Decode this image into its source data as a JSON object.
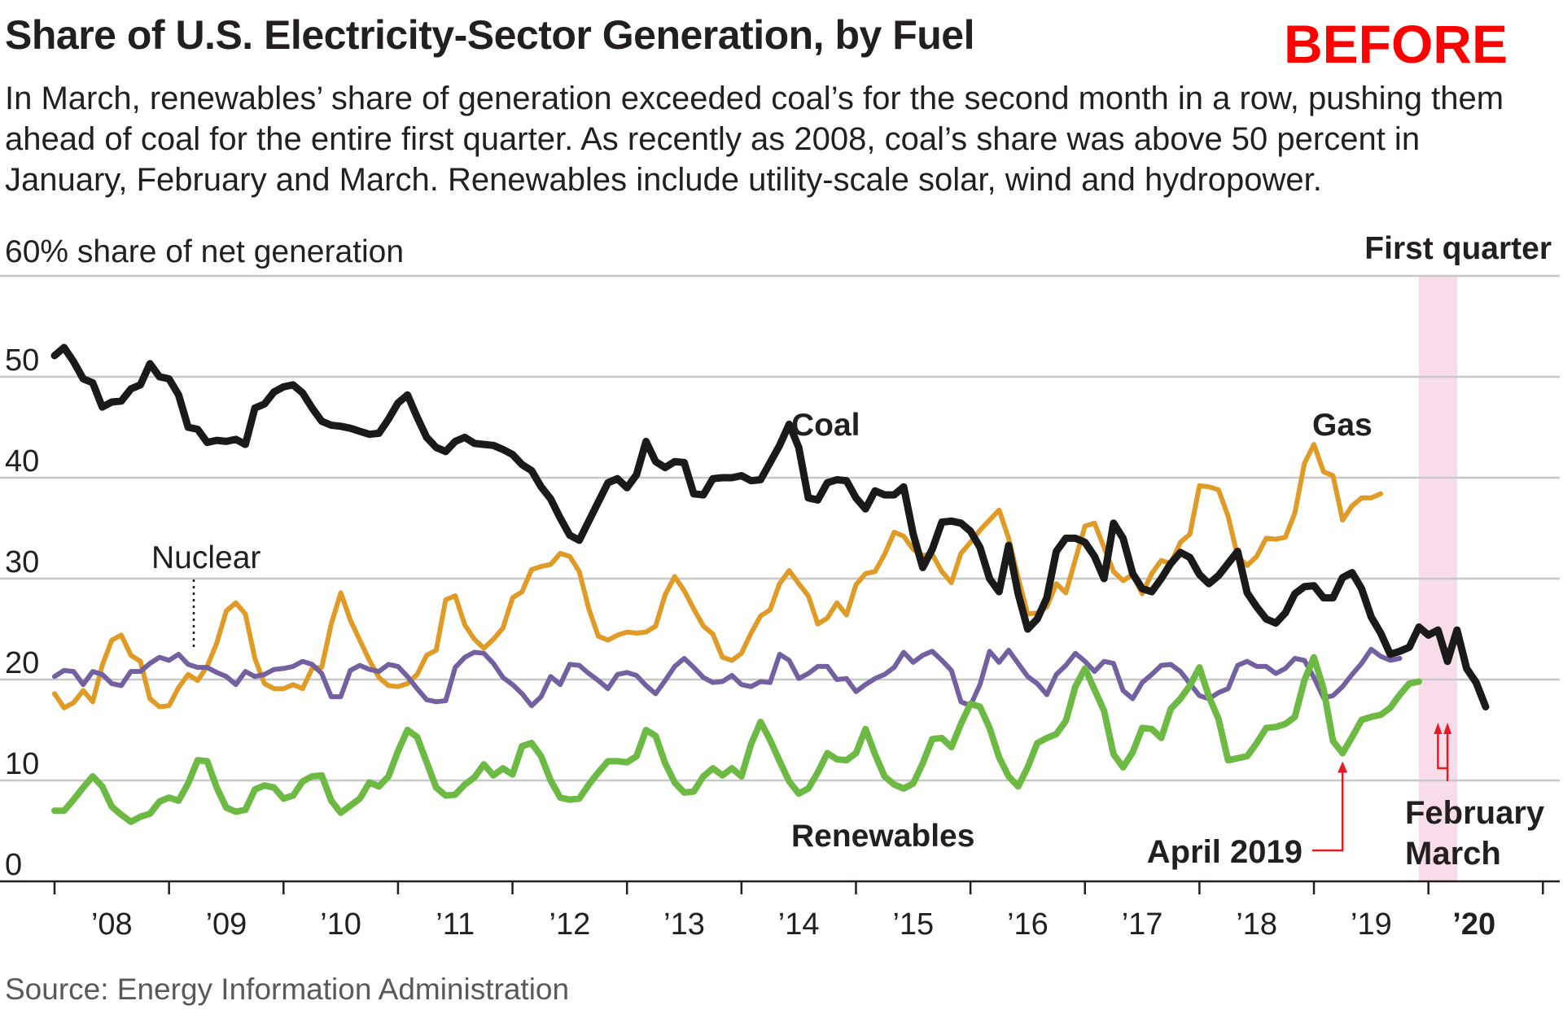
{
  "header": {
    "title": "Share of U.S. Electricity-Sector Generation, by Fuel",
    "badge": "BEFORE",
    "subtitle": "In March, renewables’ share of generation exceeded coal’s for the second month in a row, pushing them ahead of coal for the entire first quarter. As recently as 2008, coal’s share was above 50 percent in January, February and March. Renewables include utility-scale solar, wind and hydropower."
  },
  "source": "Source: Energy Information Administration",
  "chart_data": {
    "type": "line",
    "title": "Share of U.S. Electricity-Sector Generation, by Fuel",
    "ylabel": "60% share of net generation",
    "xlabel": "",
    "ylim": [
      0,
      60
    ],
    "yticks": [
      0,
      10,
      20,
      30,
      40,
      50
    ],
    "ytick_labels": [
      "0",
      "10",
      "20",
      "30",
      "40",
      "50"
    ],
    "x_unit": "monthly, January 2008 (t=0) to March 2020 (t=146)",
    "x_tick_labels": [
      "’08",
      "’09",
      "’10",
      "’11",
      "’12",
      "’13",
      "’14",
      "’15",
      "’16",
      "’17",
      "’18",
      "’19",
      "’20"
    ],
    "highlight_label": "First quarter",
    "highlight_range": [
      144,
      146
    ],
    "colors": {
      "coal": "#1a1a1a",
      "gas": "#e09a26",
      "nuclear": "#7360a0",
      "renewables": "#6cb944",
      "highlight": "#f9dcea",
      "annotation": "#e31b23",
      "grid": "#c8c8c8"
    },
    "series": [
      {
        "name": "Coal",
        "key": "coal",
        "values": [
          52.1,
          52.9,
          51.5,
          49.8,
          49.4,
          47,
          47.5,
          47.6,
          48.8,
          49.2,
          51.3,
          50,
          49.8,
          48.2,
          45,
          44.8,
          43.5,
          43.7,
          43.6,
          43.8,
          43.3,
          46.9,
          47.3,
          48.5,
          49,
          49.2,
          48.4,
          46.9,
          45.6,
          45.2,
          45.1,
          44.9,
          44.6,
          44.3,
          44.4,
          45.8,
          47.4,
          48.2,
          46,
          44,
          43,
          42.6,
          43.6,
          44,
          43.4,
          43.3,
          43.2,
          42.8,
          42.3,
          41.3,
          40.7,
          39.1,
          37.9,
          36,
          34.3,
          33.8,
          35.7,
          37.6,
          39.5,
          39.9,
          39,
          40.3,
          43.6,
          41.6,
          41,
          41.6,
          41.5,
          38.4,
          38.3,
          39.9,
          40,
          40,
          40.2,
          39.7,
          39.8,
          41.5,
          43.2,
          45.3,
          43,
          38,
          37.8,
          39.5,
          39.8,
          39.7,
          38,
          36.9,
          38.7,
          38.3,
          38.3,
          39.1,
          34.4,
          31.1,
          32.9,
          35.6,
          35.7,
          35.5,
          34.7,
          33.1,
          30,
          28.7,
          33.3,
          28.5,
          25,
          26,
          28.1,
          32.7,
          34,
          34,
          33.6,
          32.2,
          30,
          35.5,
          34,
          30.5,
          29,
          28.7,
          30,
          31.5,
          32.6,
          32.1,
          30.4,
          29.5,
          30.3,
          31.5,
          32.7,
          28.6,
          27.2,
          26,
          25.6,
          26.6,
          28.5,
          29.2,
          29.3,
          28.1,
          28.1,
          30.1,
          30.6,
          29,
          26.2,
          24.6,
          22.5,
          22.8,
          23.2,
          25.2,
          24.4,
          24.9,
          21.8,
          24.9,
          21.1,
          19.7,
          17.3
        ]
      },
      {
        "name": "Gas",
        "key": "gas",
        "values": [
          18.6,
          17.2,
          17.7,
          18.9,
          17.8,
          21.4,
          23.9,
          24.4,
          22.4,
          21.8,
          18.1,
          17.3,
          17.4,
          19.2,
          20.5,
          19.9,
          21.3,
          23.6,
          26.8,
          27.6,
          26.5,
          22.1,
          19.6,
          19.1,
          19.1,
          19.5,
          19.1,
          21.1,
          21.2,
          25.5,
          28.6,
          25.9,
          23.9,
          21.9,
          20.2,
          19.4,
          19.3,
          19.6,
          20.5,
          22.4,
          22.9,
          27.9,
          28.3,
          25.4,
          24,
          23.1,
          24,
          25.1,
          28.1,
          28.7,
          30.9,
          31.2,
          31.4,
          32.5,
          32.2,
          30.7,
          27,
          24.3,
          23.9,
          24.4,
          24.7,
          24.6,
          24.7,
          25.3,
          28.4,
          30.2,
          28.8,
          27,
          25.3,
          24.5,
          22.2,
          21.9,
          22.6,
          24.6,
          26.3,
          26.9,
          29.5,
          30.8,
          29.5,
          28.3,
          25.5,
          26.1,
          27.6,
          26.4,
          29.4,
          30.5,
          30.7,
          32.4,
          34.6,
          34.2,
          32.9,
          32.3,
          32.4,
          30.7,
          29.6,
          32.5,
          33.6,
          34.8,
          35.8,
          36.8,
          34,
          30.1,
          26.5,
          26.6,
          27.2,
          29.5,
          28.6,
          31.9,
          35.2,
          35.5,
          33.1,
          30.7,
          29.8,
          30.4,
          28.5,
          30.5,
          31.8,
          31.5,
          33.6,
          34.4,
          39.2,
          39.1,
          38.8,
          36.2,
          32.2,
          31.3,
          32.2,
          34,
          33.9,
          34.1,
          36.5,
          41.4,
          43.3,
          40.6,
          40.2,
          35.8,
          37.2,
          38,
          38,
          38.4
        ]
      },
      {
        "name": "Nuclear",
        "key": "nuclear",
        "values": [
          20.3,
          20.9,
          20.8,
          19.5,
          20.8,
          20.5,
          19.6,
          19.4,
          20.8,
          20.8,
          21.6,
          22.2,
          21.9,
          22.5,
          21.5,
          21.2,
          21.2,
          20.7,
          20.3,
          19.5,
          20.8,
          20.3,
          20.5,
          21,
          21.1,
          21.3,
          21.8,
          21.5,
          20.6,
          18.3,
          18.3,
          20.9,
          21.4,
          21,
          20.8,
          21.5,
          21.3,
          20.3,
          19.1,
          18,
          17.8,
          17.9,
          21.2,
          22.2,
          22.7,
          22.6,
          21.6,
          20.2,
          19.5,
          18.6,
          17.4,
          18.3,
          20.3,
          19.5,
          21.5,
          21.4,
          20.6,
          19.9,
          19.1,
          20.5,
          20.7,
          20.4,
          19.4,
          18.6,
          19.9,
          21.3,
          22.1,
          21.2,
          20.2,
          19.7,
          19.8,
          20.4,
          19.5,
          19.3,
          19.8,
          19.7,
          22.5,
          21.9,
          20.1,
          20.6,
          21.3,
          21.3,
          20,
          20.1,
          18.8,
          19.5,
          20.1,
          20.5,
          21.2,
          22.7,
          21.7,
          22.4,
          22.8,
          21.9,
          20.9,
          17.8,
          17.4,
          19.5,
          22.8,
          21.7,
          22.9,
          21.6,
          20.3,
          19.6,
          18.5,
          20.5,
          21.4,
          22.6,
          21.8,
          20.8,
          21.8,
          21.6,
          18.9,
          18.1,
          19.7,
          20.5,
          21.4,
          21.5,
          20.8,
          19.6,
          18.4,
          18.1,
          18.7,
          19.1,
          21.4,
          21.8,
          21.3,
          21.3,
          20.6,
          21.1,
          22.1,
          21.9,
          20.2,
          18.2,
          18.4,
          19.3,
          20.5,
          21.6,
          23,
          22.3,
          21.9,
          22.1
        ]
      },
      {
        "name": "Renewables",
        "key": "renewables",
        "values": [
          7,
          7,
          8.1,
          9.3,
          10.4,
          9.4,
          7.4,
          6.6,
          5.9,
          6.4,
          6.7,
          7.9,
          8.3,
          8,
          9.7,
          12,
          11.9,
          9.3,
          7.3,
          6.9,
          7.1,
          9.1,
          9.5,
          9.3,
          8.2,
          8.5,
          9.9,
          10.4,
          10.5,
          8,
          6.8,
          7.5,
          8.2,
          9.8,
          9.4,
          10.4,
          12.9,
          15,
          14.3,
          11.8,
          9.3,
          8.5,
          8.6,
          9.6,
          10.3,
          11.6,
          10.5,
          11.2,
          10.6,
          13.4,
          13.7,
          12.4,
          10,
          8.3,
          8.1,
          8.2,
          9.6,
          10.8,
          11.9,
          11.9,
          11.8,
          12.4,
          15,
          14.4,
          11.7,
          9.8,
          8.8,
          8.9,
          10.4,
          11.2,
          10.5,
          11.2,
          10.4,
          13.6,
          15.8,
          14,
          11.9,
          9.9,
          8.7,
          9.2,
          10.8,
          12.7,
          12.1,
          12,
          12.7,
          15.1,
          12.6,
          10.4,
          9.6,
          9.2,
          9.7,
          11.7,
          14.1,
          14.2,
          13.3,
          15.6,
          17.6,
          17.3,
          15.2,
          12.3,
          10.4,
          9.4,
          11.3,
          13.7,
          14.2,
          14.6,
          15.9,
          19.3,
          21.1,
          19,
          16.9,
          12.6,
          11.3,
          12.8,
          15.2,
          15.1,
          14.2,
          17.1,
          18.1,
          19.4,
          21.2,
          18.3,
          16.1,
          12,
          12.2,
          12.4,
          13.7,
          15.2,
          15.3,
          15.6,
          16.3,
          19.9,
          22.2,
          19.1,
          13.9,
          12.7,
          14.3,
          16,
          16.3,
          16.5,
          17.2,
          18.5,
          19.6,
          19.8
        ]
      }
    ],
    "annotations": {
      "coal": "Coal",
      "gas": "Gas",
      "nuclear": "Nuclear",
      "renewables": "Renewables",
      "april": "April 2019",
      "february": "February",
      "march": "March"
    },
    "annotation_points": {
      "april_2019_month": 135,
      "february_month": 145,
      "march_month": 146
    }
  }
}
